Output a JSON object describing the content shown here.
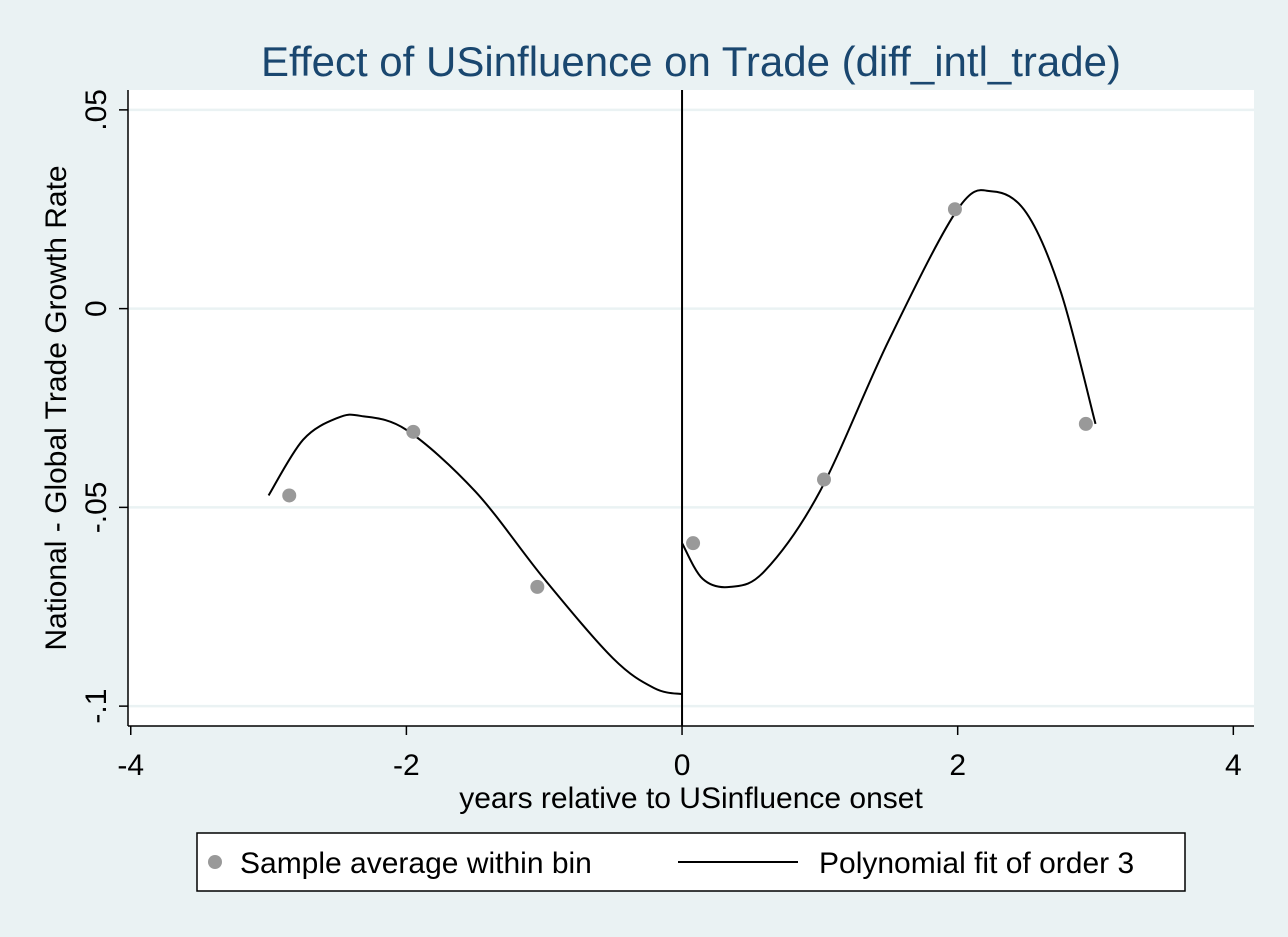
{
  "chart_data": {
    "type": "scatter",
    "title": "Effect of USinfluence on Trade (diff_intl_trade)",
    "xlabel": "years relative to USinfluence onset",
    "ylabel": "National - Global Trade Growth Rate",
    "xlim": [
      -4.02,
      4.15
    ],
    "ylim": [
      -0.105,
      0.055
    ],
    "xticks": [
      -4,
      -2,
      0,
      2,
      4
    ],
    "xtick_labels": [
      "-4",
      "-2",
      "0",
      "2",
      "4"
    ],
    "yticks": [
      -0.1,
      -0.05,
      0,
      0.05
    ],
    "ytick_labels": [
      "-.1",
      "-.05",
      "0",
      ".05"
    ],
    "grid": "horizontal",
    "cutoff_line_x": 0,
    "series": [
      {
        "name": "Sample average within bin",
        "kind": "scatter",
        "color": "#999999",
        "points": [
          {
            "x": -2.85,
            "y": -0.047
          },
          {
            "x": -1.95,
            "y": -0.031
          },
          {
            "x": -1.05,
            "y": -0.07
          },
          {
            "x": 0.08,
            "y": -0.059
          },
          {
            "x": 1.03,
            "y": -0.043
          },
          {
            "x": 1.98,
            "y": 0.025
          },
          {
            "x": 2.93,
            "y": -0.029
          }
        ]
      },
      {
        "name": "Polynomial fit of order 3",
        "kind": "line",
        "color": "#000000",
        "segments": [
          [
            [
              -3.0,
              -0.047
            ],
            [
              -2.75,
              -0.033
            ],
            [
              -2.5,
              -0.0275
            ],
            [
              -2.33,
              -0.027
            ],
            [
              -2.0,
              -0.0305
            ],
            [
              -1.5,
              -0.046
            ],
            [
              -1.0,
              -0.068
            ],
            [
              -0.5,
              -0.088
            ],
            [
              -0.2,
              -0.0955
            ],
            [
              0.0,
              -0.097
            ]
          ],
          [
            [
              0.0,
              -0.059
            ],
            [
              0.15,
              -0.068
            ],
            [
              0.35,
              -0.07
            ],
            [
              0.6,
              -0.066
            ],
            [
              1.0,
              -0.046
            ],
            [
              1.5,
              -0.008
            ],
            [
              2.0,
              0.025
            ],
            [
              2.25,
              0.0295
            ],
            [
              2.5,
              0.024
            ],
            [
              2.75,
              0.004
            ],
            [
              3.0,
              -0.029
            ]
          ]
        ]
      }
    ],
    "legend": {
      "position": "bottom",
      "entries": [
        "Sample average within bin",
        "Polynomial fit of order 3"
      ]
    }
  }
}
